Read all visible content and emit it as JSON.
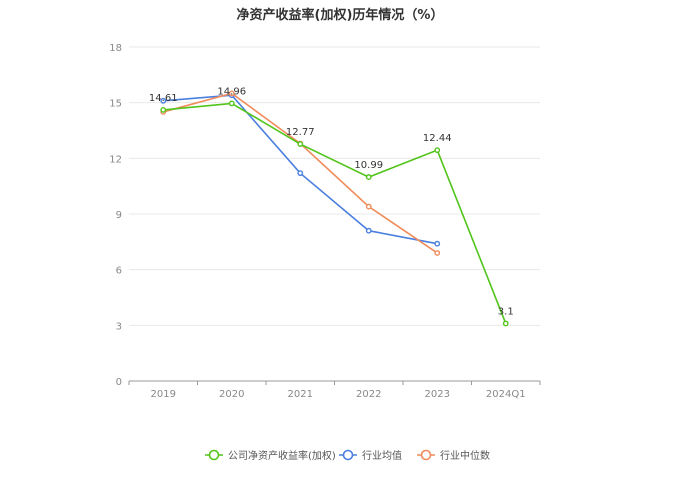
{
  "title": "净资产收益率(加权)历年情况（%）",
  "chart_data": {
    "type": "line",
    "title": "净资产收益率(加权)历年情况（%）",
    "xlabel": "",
    "ylabel": "",
    "categories": [
      "2019",
      "2020",
      "2021",
      "2022",
      "2023",
      "2024Q1"
    ],
    "ylim": [
      0,
      18
    ],
    "yticks": [
      0,
      3,
      6,
      9,
      12,
      15,
      18
    ],
    "grid": true,
    "legend_position": "bottom",
    "series": [
      {
        "name": "公司净资产收益率(加权)",
        "color": "#52c41a",
        "values": [
          14.61,
          14.96,
          12.77,
          10.99,
          12.44,
          3.1
        ],
        "labels": [
          "14.61",
          "14.96",
          "12.77",
          "10.99",
          "12.44",
          "3.1"
        ]
      },
      {
        "name": "行业均值",
        "color": "#4a7fe0",
        "values": [
          15.1,
          15.4,
          11.2,
          8.1,
          7.4,
          null
        ]
      },
      {
        "name": "行业中位数",
        "color": "#f08c5c",
        "values": [
          14.5,
          15.5,
          12.8,
          9.4,
          6.9,
          null
        ]
      }
    ]
  }
}
